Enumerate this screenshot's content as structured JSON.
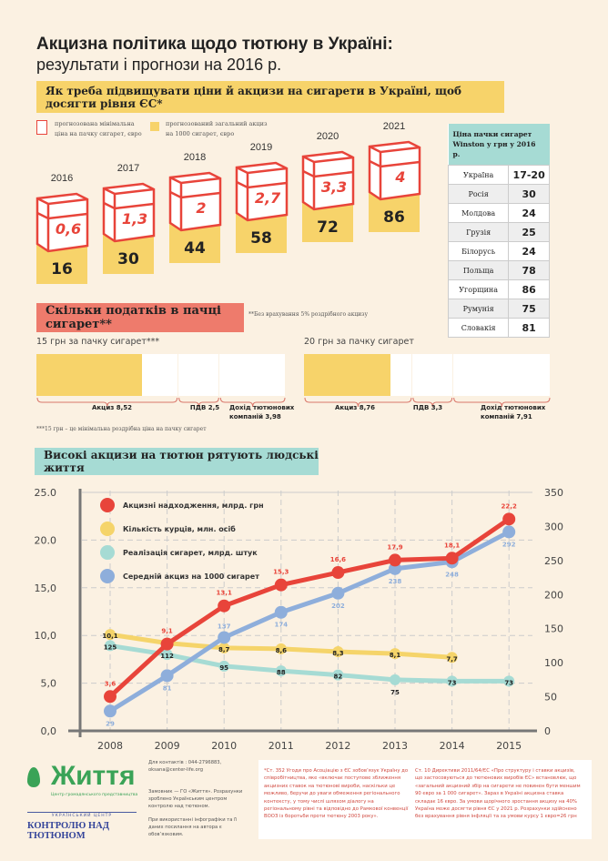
{
  "header": {
    "title": "Акцизна політика щодо тютюну в Україні:",
    "subtitle": "результати і прогнози на 2016 р."
  },
  "section1": {
    "banner": "Як треба підвищувати ціни й акцизи  на сигарети в Україні, щоб досягти рівня ЄС*",
    "legend_box": "прогнозована мінімальна ціна на пачку сигарет, євро",
    "legend_yellow": "прогнозований загальний акциз на 1000 сигарет, євро",
    "colors": {
      "box": "#e8443a",
      "yellow": "#f7d36a"
    },
    "years": [
      {
        "year": "2016",
        "price": "0,6",
        "excise": "16"
      },
      {
        "year": "2017",
        "price": "1,3",
        "excise": "30"
      },
      {
        "year": "2018",
        "price": "2",
        "excise": "44"
      },
      {
        "year": "2019",
        "price": "2,7",
        "excise": "58"
      },
      {
        "year": "2020",
        "price": "3,3",
        "excise": "72"
      },
      {
        "year": "2021",
        "price": "4",
        "excise": "86"
      }
    ],
    "price_table": {
      "title": "Ціна пачки сигарет Winston у грн у 2016 р.",
      "rows": [
        [
          "Україна",
          "17-20"
        ],
        [
          "Росія",
          "30"
        ],
        [
          "Молдова",
          "24"
        ],
        [
          "Грузія",
          "25"
        ],
        [
          "Білорусь",
          "24"
        ],
        [
          "Польща",
          "78"
        ],
        [
          "Угорщина",
          "86"
        ],
        [
          "Румунія",
          "75"
        ],
        [
          "Словакія",
          "81"
        ]
      ]
    }
  },
  "section2": {
    "banner": "Скільки податків в пачці сигарет**",
    "note": "**Без врахування 5% роздрібного акцизу",
    "pack15": {
      "title": "15 грн за пачку сигарет***",
      "excise": "Акциз 8,52",
      "vat": "ПДВ 2,5",
      "income": "Дохід тютюнових компаній  3,98",
      "excise_value": 8.52,
      "vat_value": 2.5,
      "income_value": 3.98
    },
    "pack20": {
      "title": "20 грн за пачку сигарет",
      "excise": "Акциз 8,76",
      "vat": "ПДВ 3,3",
      "income": "Дохід тютюнових компаній 7,91",
      "excise_value": 8.76,
      "vat_value": 3.3,
      "income_value": 7.91
    },
    "footnote": "***15 грн – це мінімальна роздрібна ціна на пачку сигарет"
  },
  "section3": {
    "banner": "Високі акцизи на тютюн рятують людські життя"
  },
  "chart_data": {
    "type": "line",
    "x": [
      "2008",
      "2009",
      "2010",
      "2011",
      "2012",
      "2013",
      "2014",
      "2015"
    ],
    "ylim_left": [
      0,
      25
    ],
    "ylim_right": [
      0,
      350
    ],
    "yticks_left": [
      "0,0",
      "5,0",
      "10,0",
      "15,0",
      "20.0",
      "25.0"
    ],
    "yticks_right": [
      "0",
      "50",
      "100",
      "150",
      "200",
      "250",
      "300",
      "350"
    ],
    "grid": true,
    "legend": "top-left",
    "series": [
      {
        "name": "Акцизні надходження, млрд. грн",
        "axis": "left",
        "color": "#e8443a",
        "values": [
          3.6,
          9.1,
          13.1,
          15.3,
          16.6,
          17.9,
          18.1,
          22.2
        ],
        "labels": [
          "3,6",
          "9,1",
          "13,1",
          "15,3",
          "16,6",
          "17,9",
          "18,1",
          "22,2"
        ]
      },
      {
        "name": "Кількість курців, млн. осіб",
        "axis": "left",
        "color": "#f5d46a",
        "values": [
          10.1,
          9.2,
          8.7,
          8.6,
          8.3,
          8.1,
          7.7,
          null
        ],
        "labels": [
          "10,1",
          "9,2",
          "8,7",
          "8,6",
          "8,3",
          "8,1",
          "7,7",
          ""
        ]
      },
      {
        "name": "Реалізація сигарет, млрд. штук",
        "axis": "right",
        "color": "#a6dbd4",
        "values": [
          125,
          112,
          95,
          88,
          82,
          75,
          73,
          73
        ],
        "labels": [
          "125",
          "112",
          "95",
          "88",
          "82",
          "75",
          "73",
          "73"
        ]
      },
      {
        "name": "Середній акциз на 1000 сигарет",
        "axis": "right",
        "color": "#8eaedb",
        "values": [
          29,
          81,
          137,
          174,
          202,
          238,
          248,
          292
        ],
        "labels": [
          "29",
          "81",
          "137",
          "174",
          "202",
          "238",
          "248",
          "292"
        ]
      }
    ]
  },
  "footer": {
    "logo1": "Життя",
    "logo1_sub": "Центр громадянського представництва",
    "logo2_top": "УКРАЇНСЬКИЙ ЦЕНТР",
    "logo2": "КОНТРОЛЮ НАД ТЮТЮНОМ",
    "contacts": "Для контактів : 044-2796883, oksana@center-life.org",
    "customer": "Замовник — ГО «Життя». Розрахунки зроблено Українським центром контролю над тютюном.",
    "usage": "При використанні інфографіки та її даних посилання на автора є обов’язковим.",
    "note1": "*Ст. 352 Угоди про Асоціацію з ЄС зобов’язує Україну до співробітництва, яке «включає поступове зближення акцизних ставок на тютюнові вироби, наскільки це можливо, беручи до уваги обмеження регіонального контексту, у тому числі шляхом діалогу на регіональному рівні та відповідно до Рамкової конвенції ВООЗ із боротьби проти тютюну 2003 року».",
    "note2": "Ст. 10 Директиви 2011/64/ЄС «Про структуру і ставки акцизів, що застосовуються до тютюнових виробів ЄС» встановлює, що «загальний акцизний збір на сигарети не повинен бути меншим 90 євро за 1 000 сигарет». Зараз в Україні акцизна ставка складає 16 євро. За умови щорічного зростання акцизу на 40% Україна може досягти рівня ЄС у 2021 р. Розрахунки здійснено без врахування рівня інфляції та за умови курсу 1 євро=26 грн"
  }
}
